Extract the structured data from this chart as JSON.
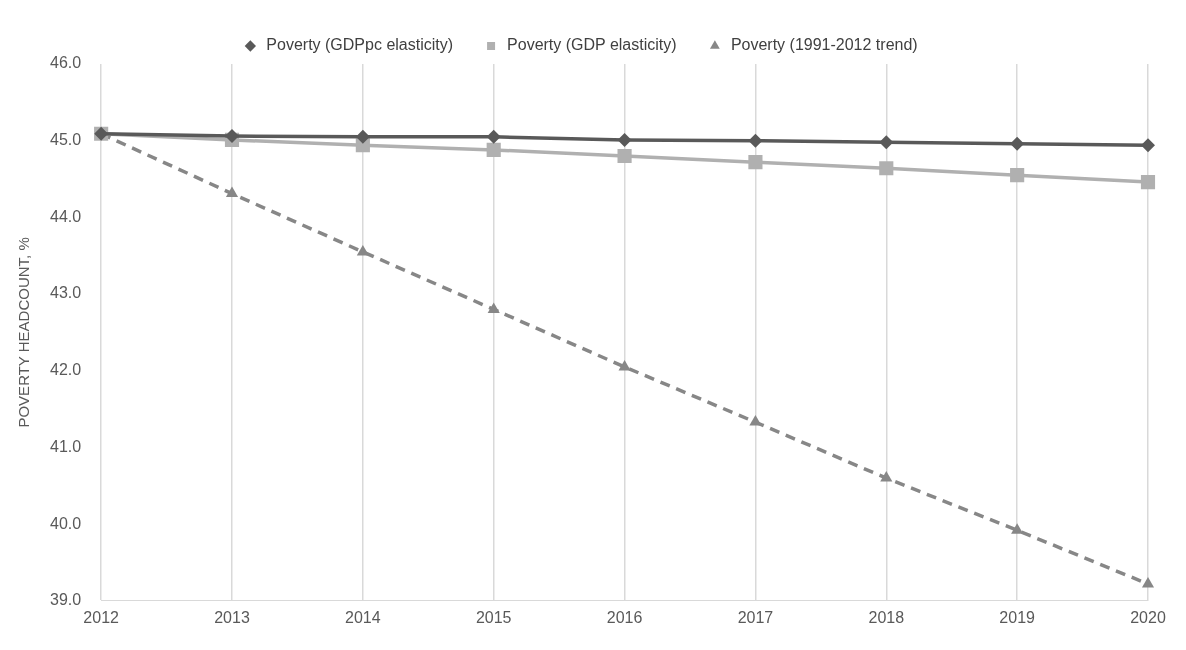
{
  "chart_data": {
    "type": "line",
    "ylabel": "POVERTY HEADCOUNT, %",
    "categories": [
      "2012",
      "2013",
      "2014",
      "2015",
      "2016",
      "2017",
      "2018",
      "2019",
      "2020"
    ],
    "series": [
      {
        "name": "Poverty (GDPpc elasticity)",
        "color": "#595959",
        "marker": "diamond",
        "line_style": "solid",
        "values": [
          45.09,
          45.06,
          45.05,
          45.05,
          45.01,
          45.0,
          44.98,
          44.96,
          44.94
        ]
      },
      {
        "name": "Poverty (GDP elasticity)",
        "color": "#b0b0b0",
        "marker": "square",
        "line_style": "solid",
        "values": [
          45.09,
          45.01,
          44.94,
          44.88,
          44.8,
          44.72,
          44.64,
          44.55,
          44.46
        ]
      },
      {
        "name": "Poverty (1991-2012 trend)",
        "color": "#878787",
        "marker": "triangle",
        "line_style": "dashed",
        "values": [
          45.09,
          44.31,
          43.55,
          42.8,
          42.05,
          41.33,
          40.6,
          39.92,
          39.22
        ]
      }
    ],
    "ylim": [
      39,
      46
    ],
    "yticks": [
      {
        "value": 39,
        "label": "39.0"
      },
      {
        "value": 40,
        "label": "40.0"
      },
      {
        "value": 41,
        "label": "41.0"
      },
      {
        "value": 42,
        "label": "42.0"
      },
      {
        "value": 43,
        "label": "43.0"
      },
      {
        "value": 44,
        "label": "44.0"
      },
      {
        "value": 45,
        "label": "45.0"
      },
      {
        "value": 46,
        "label": "46.0"
      }
    ],
    "grid": "x",
    "legend": "top"
  }
}
